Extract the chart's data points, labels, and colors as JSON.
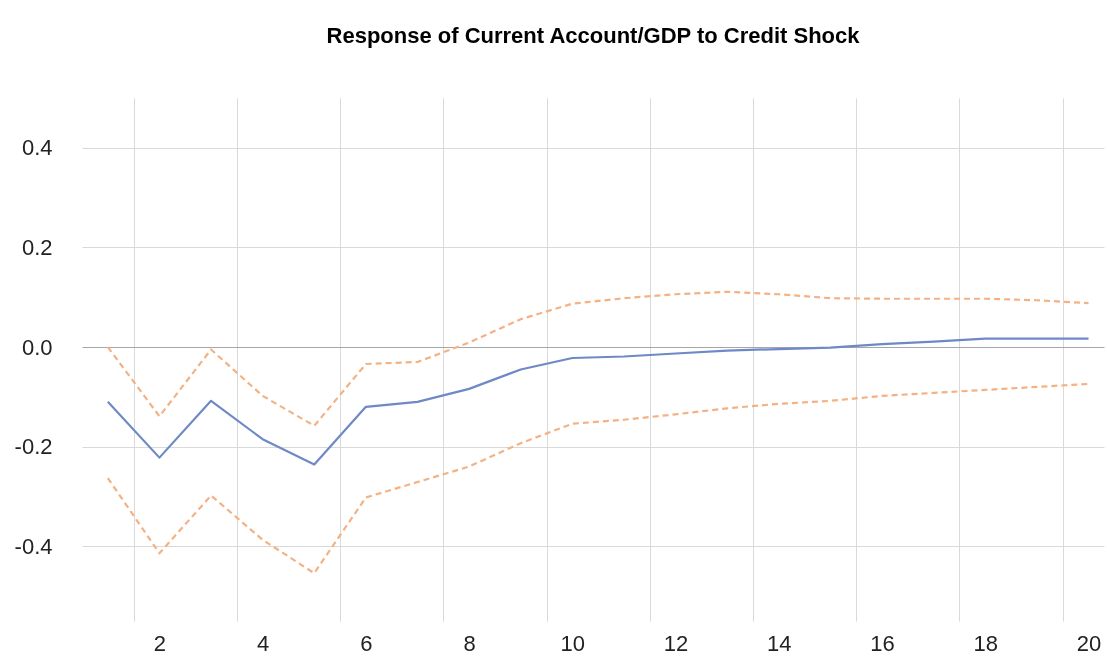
{
  "chart_data": {
    "type": "line",
    "title": "Response of Current Account/GDP to Credit Shock",
    "x": [
      1,
      2,
      3,
      4,
      5,
      6,
      7,
      8,
      9,
      10,
      11,
      12,
      13,
      14,
      15,
      16,
      17,
      18,
      19,
      20
    ],
    "xlim": [
      0.5,
      20.3
    ],
    "xticks": [
      {
        "value": 1.5,
        "label": null
      },
      2,
      {
        "value": 3.5,
        "label": null
      },
      4,
      {
        "value": 5.5,
        "label": null
      },
      6,
      {
        "value": 7.5,
        "label": null
      },
      8,
      {
        "value": 9.5,
        "label": null
      },
      10,
      {
        "value": 11.5,
        "label": null
      },
      12,
      {
        "value": 13.5,
        "label": null
      },
      14,
      {
        "value": 15.5,
        "label": null
      },
      16,
      {
        "value": 17.5,
        "label": null
      },
      18,
      {
        "value": 19.5,
        "label": null
      },
      20
    ],
    "ylim": [
      -0.55,
      0.5
    ],
    "yticks": [
      {
        "value": -0.4,
        "label": "-0.4"
      },
      {
        "value": -0.2,
        "label": "-0.2"
      },
      {
        "value": 0,
        "label": "0.0"
      },
      {
        "value": 0.2,
        "label": "0.2"
      },
      {
        "value": 0.4,
        "label": "0.4"
      }
    ],
    "grid": true,
    "series": [
      {
        "color": "#6f88c6",
        "line_style": "solid",
        "values": [
          -0.11,
          -0.222,
          -0.108,
          -0.185,
          -0.236,
          -0.12,
          -0.11,
          -0.084,
          -0.045,
          -0.022,
          -0.019,
          -0.013,
          -0.007,
          -0.004,
          -0.001,
          0.006,
          0.011,
          0.017,
          0.017,
          0.017
        ]
      },
      {
        "color": "#f4b183",
        "line_style": "dashed",
        "values": [
          0.0,
          -0.139,
          -0.005,
          -0.098,
          -0.158,
          -0.034,
          -0.03,
          0.009,
          0.056,
          0.087,
          0.098,
          0.106,
          0.111,
          0.106,
          0.098,
          0.097,
          0.097,
          0.097,
          0.094,
          0.088
        ]
      },
      {
        "color": "#f4b183",
        "line_style": "dashed",
        "values": [
          -0.263,
          -0.414,
          -0.298,
          -0.387,
          -0.454,
          -0.302,
          -0.271,
          -0.24,
          -0.193,
          -0.154,
          -0.146,
          -0.135,
          -0.123,
          -0.114,
          -0.108,
          -0.098,
          -0.092,
          -0.086,
          -0.08,
          -0.074
        ]
      }
    ]
  }
}
